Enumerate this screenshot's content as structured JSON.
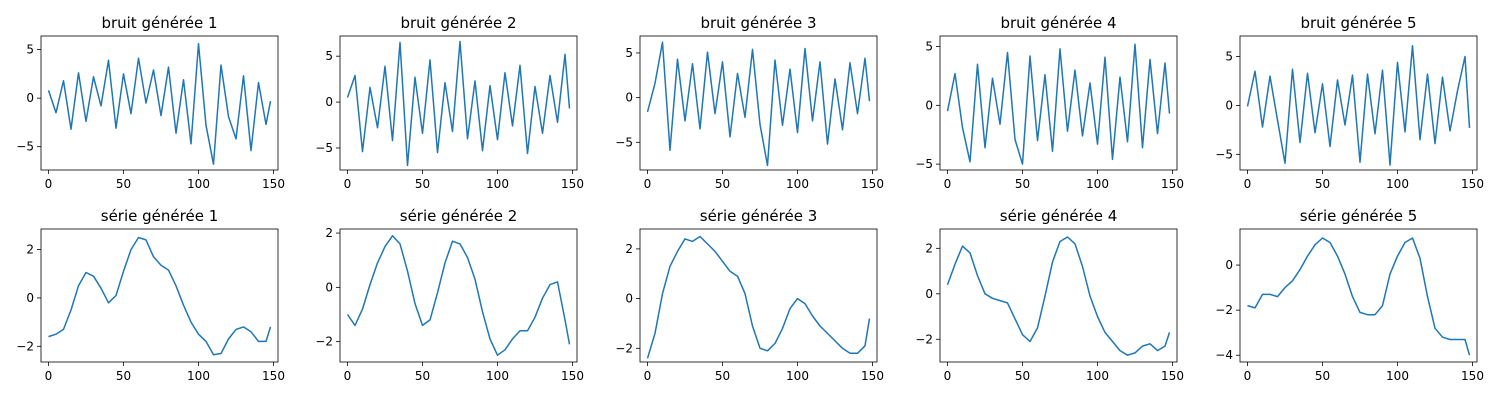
{
  "chart_data": [
    {
      "type": "line",
      "title": "bruit générée 1",
      "xlim": [
        -5,
        153
      ],
      "ylim": [
        -7.4,
        6.4
      ],
      "xticks": [
        0,
        50,
        100,
        150
      ],
      "yticks": [
        -5,
        0,
        5
      ],
      "color": "#1f77b4",
      "x": [
        0,
        5,
        10,
        15,
        20,
        25,
        30,
        35,
        40,
        45,
        50,
        55,
        60,
        65,
        70,
        75,
        80,
        85,
        90,
        95,
        100,
        105,
        110,
        115,
        120,
        125,
        130,
        135,
        140,
        145,
        148
      ],
      "y": [
        0.8,
        -1.5,
        1.8,
        -3.2,
        2.6,
        -2.4,
        2.2,
        -0.8,
        3.9,
        -3.1,
        2.5,
        -1.6,
        4.1,
        -0.5,
        2.9,
        -1.8,
        3.2,
        -3.6,
        1.9,
        -4.7,
        5.6,
        -2.8,
        -6.8,
        3.4,
        -1.9,
        -4.2,
        2.3,
        -5.4,
        1.6,
        -2.7,
        -0.3
      ]
    },
    {
      "type": "line",
      "title": "bruit générée 2",
      "xlim": [
        -5,
        153
      ],
      "ylim": [
        -7.4,
        7.2
      ],
      "xticks": [
        0,
        50,
        100,
        150
      ],
      "yticks": [
        -5,
        0,
        5
      ],
      "color": "#1f77b4",
      "x": [
        0,
        5,
        10,
        15,
        20,
        25,
        30,
        35,
        40,
        45,
        50,
        55,
        60,
        65,
        70,
        75,
        80,
        85,
        90,
        95,
        100,
        105,
        110,
        115,
        120,
        125,
        130,
        135,
        140,
        145,
        148
      ],
      "y": [
        0.5,
        2.9,
        -5.4,
        1.6,
        -2.8,
        3.9,
        -4.2,
        6.5,
        -6.9,
        2.7,
        -3.4,
        4.6,
        -5.5,
        2.1,
        -3.2,
        6.6,
        -4.0,
        2.3,
        -5.3,
        1.8,
        -4.1,
        3.2,
        -2.6,
        4.0,
        -5.6,
        1.7,
        -3.4,
        2.9,
        -2.2,
        5.2,
        -0.7
      ]
    },
    {
      "type": "line",
      "title": "bruit générée 3",
      "xlim": [
        -5,
        153
      ],
      "ylim": [
        -8.1,
        6.9
      ],
      "xticks": [
        0,
        50,
        100,
        150
      ],
      "yticks": [
        -5,
        0,
        5
      ],
      "color": "#1f77b4",
      "x": [
        0,
        5,
        10,
        15,
        20,
        25,
        30,
        35,
        40,
        45,
        50,
        55,
        60,
        65,
        70,
        75,
        80,
        85,
        90,
        95,
        100,
        105,
        110,
        115,
        120,
        125,
        130,
        135,
        140,
        145,
        148
      ],
      "y": [
        -1.6,
        1.6,
        6.2,
        -5.9,
        4.3,
        -2.6,
        3.8,
        -3.5,
        5.1,
        -1.8,
        4.0,
        -4.4,
        2.7,
        -2.2,
        5.4,
        -3.0,
        -7.6,
        4.2,
        -3.1,
        3.2,
        -3.9,
        5.5,
        -2.6,
        4.0,
        -5.2,
        2.1,
        -3.6,
        3.9,
        -1.8,
        4.4,
        -0.4
      ]
    },
    {
      "type": "line",
      "title": "bruit générée 4",
      "xlim": [
        -5,
        153
      ],
      "ylim": [
        -5.5,
        5.9
      ],
      "xticks": [
        0,
        50,
        100,
        150
      ],
      "yticks": [
        -5,
        0,
        5
      ],
      "color": "#1f77b4",
      "x": [
        0,
        5,
        10,
        15,
        20,
        25,
        30,
        35,
        40,
        45,
        50,
        55,
        60,
        65,
        70,
        75,
        80,
        85,
        90,
        95,
        100,
        105,
        110,
        115,
        120,
        125,
        130,
        135,
        140,
        145,
        148
      ],
      "y": [
        -0.5,
        2.7,
        -1.9,
        -4.8,
        3.5,
        -3.6,
        2.3,
        -1.6,
        4.5,
        -2.9,
        -5.0,
        4.2,
        -3.0,
        2.6,
        -3.9,
        4.8,
        -2.2,
        3.0,
        -2.6,
        1.9,
        -3.3,
        4.1,
        -4.6,
        2.4,
        -3.1,
        5.2,
        -3.6,
        3.9,
        -2.4,
        3.6,
        -0.7
      ]
    },
    {
      "type": "line",
      "title": "bruit générée 5",
      "xlim": [
        -5,
        153
      ],
      "ylim": [
        -6.6,
        7.1
      ],
      "xticks": [
        0,
        50,
        100,
        150
      ],
      "yticks": [
        -5,
        0,
        5
      ],
      "color": "#1f77b4",
      "x": [
        0,
        5,
        10,
        15,
        20,
        25,
        30,
        35,
        40,
        45,
        50,
        55,
        60,
        65,
        70,
        75,
        80,
        85,
        90,
        95,
        100,
        105,
        110,
        115,
        120,
        125,
        130,
        135,
        140,
        145,
        148
      ],
      "y": [
        -0.1,
        3.5,
        -2.2,
        3.0,
        -1.5,
        -5.9,
        3.7,
        -3.8,
        3.3,
        -2.8,
        2.2,
        -4.2,
        2.6,
        -2.0,
        3.1,
        -5.8,
        3.2,
        -2.9,
        3.6,
        -6.1,
        4.4,
        -2.7,
        6.1,
        -3.5,
        3.2,
        -3.9,
        2.9,
        -2.6,
        1.5,
        5.0,
        -2.3
      ]
    },
    {
      "type": "line",
      "title": "série générée 1",
      "xlim": [
        -5,
        153
      ],
      "ylim": [
        -2.65,
        2.85
      ],
      "xticks": [
        0,
        50,
        100,
        150
      ],
      "yticks": [
        -2,
        0,
        2
      ],
      "color": "#1f77b4",
      "x": [
        0,
        5,
        10,
        15,
        20,
        25,
        30,
        35,
        40,
        45,
        50,
        55,
        60,
        65,
        70,
        75,
        80,
        85,
        90,
        95,
        100,
        105,
        110,
        115,
        120,
        125,
        130,
        135,
        140,
        145,
        148
      ],
      "y": [
        -1.6,
        -1.5,
        -1.3,
        -0.5,
        0.5,
        1.05,
        0.9,
        0.4,
        -0.2,
        0.1,
        1.1,
        2.0,
        2.5,
        2.4,
        1.7,
        1.35,
        1.15,
        0.5,
        -0.3,
        -1.0,
        -1.5,
        -1.8,
        -2.35,
        -2.3,
        -1.7,
        -1.3,
        -1.2,
        -1.4,
        -1.8,
        -1.8,
        -1.2
      ]
    },
    {
      "type": "line",
      "title": "série générée 2",
      "xlim": [
        -5,
        153
      ],
      "ylim": [
        -2.75,
        2.15
      ],
      "xticks": [
        0,
        50,
        100,
        150
      ],
      "yticks": [
        -2,
        0,
        2
      ],
      "color": "#1f77b4",
      "x": [
        0,
        5,
        10,
        15,
        20,
        25,
        30,
        35,
        40,
        45,
        50,
        55,
        60,
        65,
        70,
        75,
        80,
        85,
        90,
        95,
        100,
        105,
        110,
        115,
        120,
        125,
        130,
        135,
        140,
        145,
        148
      ],
      "y": [
        -1.0,
        -1.4,
        -0.8,
        0.1,
        0.9,
        1.5,
        1.9,
        1.6,
        0.6,
        -0.6,
        -1.4,
        -1.2,
        -0.2,
        0.9,
        1.7,
        1.6,
        1.1,
        0.3,
        -0.9,
        -1.9,
        -2.5,
        -2.3,
        -1.9,
        -1.6,
        -1.6,
        -1.1,
        -0.4,
        0.1,
        0.2,
        -1.2,
        -2.1
      ]
    },
    {
      "type": "line",
      "title": "série générée 3",
      "xlim": [
        -5,
        153
      ],
      "ylim": [
        -2.55,
        2.8
      ],
      "xticks": [
        0,
        50,
        100,
        150
      ],
      "yticks": [
        -2,
        0,
        2
      ],
      "color": "#1f77b4",
      "x": [
        0,
        5,
        10,
        15,
        20,
        25,
        30,
        35,
        40,
        45,
        50,
        55,
        60,
        65,
        70,
        75,
        80,
        85,
        90,
        95,
        100,
        105,
        110,
        115,
        120,
        125,
        130,
        135,
        140,
        145,
        148
      ],
      "y": [
        -2.4,
        -1.4,
        0.2,
        1.3,
        1.9,
        2.4,
        2.3,
        2.5,
        2.2,
        1.9,
        1.5,
        1.1,
        0.9,
        0.2,
        -1.1,
        -2.0,
        -2.1,
        -1.8,
        -1.2,
        -0.4,
        0.0,
        -0.2,
        -0.7,
        -1.1,
        -1.4,
        -1.7,
        -2.0,
        -2.2,
        -2.2,
        -1.9,
        -0.8
      ]
    },
    {
      "type": "line",
      "title": "série générée 4",
      "xlim": [
        -5,
        153
      ],
      "ylim": [
        -3.0,
        2.85
      ],
      "xticks": [
        0,
        50,
        100,
        150
      ],
      "yticks": [
        -2,
        0,
        2
      ],
      "color": "#1f77b4",
      "x": [
        0,
        5,
        10,
        15,
        20,
        25,
        30,
        35,
        40,
        45,
        50,
        55,
        60,
        65,
        70,
        75,
        80,
        85,
        90,
        95,
        100,
        105,
        110,
        115,
        120,
        125,
        130,
        135,
        140,
        145,
        148
      ],
      "y": [
        0.4,
        1.3,
        2.1,
        1.8,
        0.8,
        0.0,
        -0.2,
        -0.3,
        -0.4,
        -1.1,
        -1.8,
        -2.1,
        -1.5,
        -0.1,
        1.4,
        2.3,
        2.5,
        2.2,
        1.2,
        -0.1,
        -1.0,
        -1.7,
        -2.1,
        -2.5,
        -2.7,
        -2.6,
        -2.3,
        -2.2,
        -2.5,
        -2.3,
        -1.7
      ]
    },
    {
      "type": "line",
      "title": "série générée 5",
      "xlim": [
        -5,
        153
      ],
      "ylim": [
        -4.3,
        1.6
      ],
      "xticks": [
        0,
        50,
        100,
        150
      ],
      "yticks": [
        -4,
        -2,
        0
      ],
      "color": "#1f77b4",
      "x": [
        0,
        5,
        10,
        15,
        20,
        25,
        30,
        35,
        40,
        45,
        50,
        55,
        60,
        65,
        70,
        75,
        80,
        85,
        90,
        95,
        100,
        105,
        110,
        115,
        120,
        125,
        130,
        135,
        140,
        145,
        148
      ],
      "y": [
        -1.8,
        -1.9,
        -1.3,
        -1.3,
        -1.4,
        -1.0,
        -0.7,
        -0.2,
        0.4,
        0.9,
        1.2,
        1.0,
        0.4,
        -0.4,
        -1.4,
        -2.1,
        -2.2,
        -2.2,
        -1.8,
        -0.4,
        0.4,
        1.0,
        1.2,
        0.3,
        -1.4,
        -2.8,
        -3.2,
        -3.3,
        -3.3,
        -3.3,
        -4.0
      ]
    }
  ]
}
